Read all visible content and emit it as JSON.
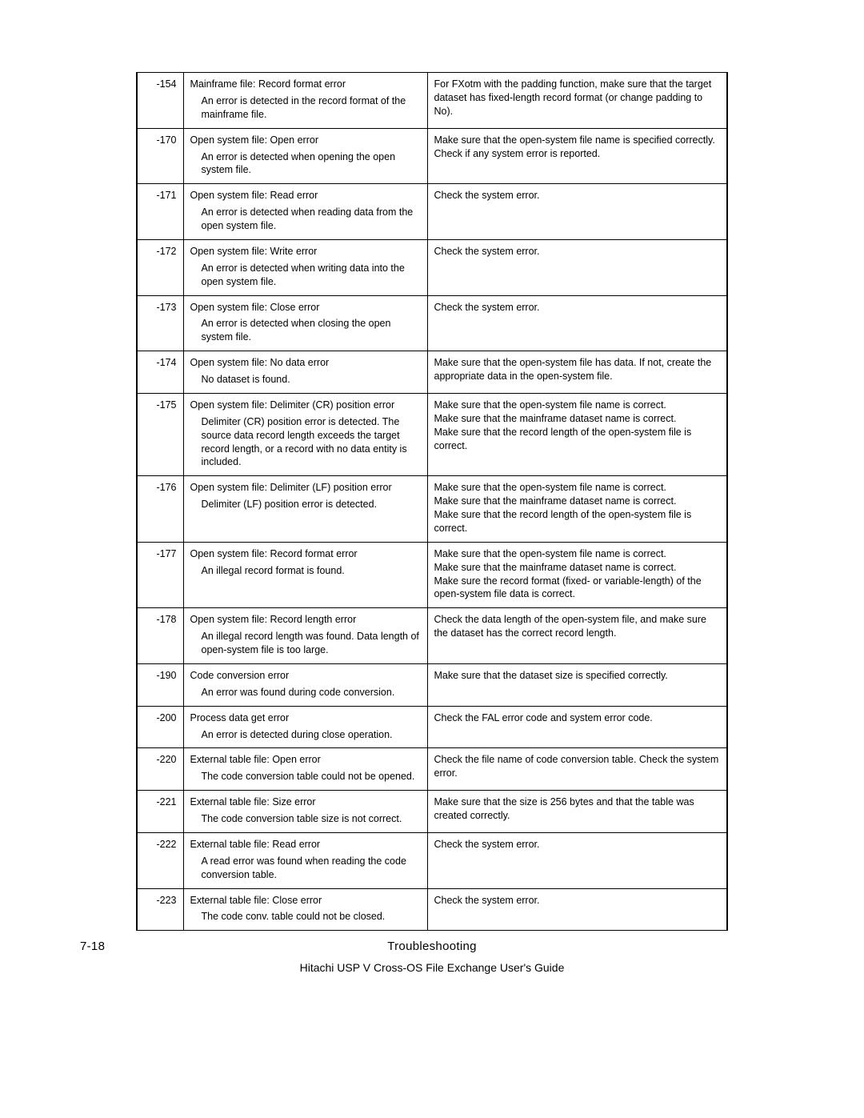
{
  "footer": {
    "page_number": "7-18",
    "section": "Troubleshooting",
    "guide": "Hitachi USP V Cross-OS File Exchange User's Guide"
  },
  "rows": [
    {
      "code": "-154",
      "title": "Mainframe file: Record format error",
      "detail": "An error is detected in the record format of the mainframe file.",
      "action": "For FXotm with the padding function, make sure that the target dataset has fixed-length record format (or change padding to No)."
    },
    {
      "code": "-170",
      "title": "Open system file: Open error",
      "detail": "An error is detected when opening the open system file.",
      "action": "Make sure that the open-system file name is specified correctly.\nCheck if any system error is reported."
    },
    {
      "code": "-171",
      "title": "Open system file: Read error",
      "detail": "An error is detected when reading data from the open system file.",
      "action": "Check the system error."
    },
    {
      "code": "-172",
      "title": "Open system file: Write error",
      "detail": "An error is detected when writing data into the open system file.",
      "action": "Check the system error."
    },
    {
      "code": "-173",
      "title": "Open system file: Close error",
      "detail": "An error is detected when closing the open system file.",
      "action": "Check the system error."
    },
    {
      "code": "-174",
      "title": "Open system file: No data error",
      "detail": "No dataset is found.",
      "action": "Make sure that the open-system file has data. If not, create the appropriate data in the open-system file."
    },
    {
      "code": "-175",
      "title": "Open system file: Delimiter (CR) position error",
      "detail": "Delimiter (CR) position error is detected. The source data record length exceeds the target record length, or a record with no data entity is included.",
      "action": "Make sure that the open-system file name is correct.\nMake sure that the mainframe dataset name is correct.\nMake sure that the record length of the open-system file is correct."
    },
    {
      "code": "-176",
      "title": "Open system file: Delimiter (LF) position error",
      "detail": "Delimiter (LF) position error is detected.",
      "action": "Make sure that the open-system file name is correct.\nMake sure that the mainframe dataset name is correct.\nMake sure that the record length of the open-system file is correct."
    },
    {
      "code": "-177",
      "title": "Open system file: Record format error",
      "detail": "An illegal record format is found.",
      "action": "Make sure that the open-system file name is correct.\nMake sure that the mainframe dataset name is correct.\nMake sure the record format (fixed- or variable-length) of the open-system file data is correct."
    },
    {
      "code": "-178",
      "title": "Open system file: Record length error",
      "detail": "An illegal record length was found. Data length of open-system file is too large.",
      "action": "Check the data length of the open-system file, and make sure the dataset has the correct record length."
    },
    {
      "code": "-190",
      "title": "Code conversion error",
      "detail": "An error was found during code conversion.",
      "action": "Make sure that the dataset size is specified correctly."
    },
    {
      "code": "-200",
      "title": "Process data get error",
      "detail": "An error is detected during close operation.",
      "action": "Check the FAL error code and system error code."
    },
    {
      "code": "-220",
      "title": "External table file: Open error",
      "detail": "The code conversion table could not be opened.",
      "action": "Check the file name of code conversion table. Check the system error."
    },
    {
      "code": "-221",
      "title": "External table file: Size error",
      "detail": "The code conversion table size is not correct.",
      "action": "Make sure that the size is 256 bytes and that the table was created correctly."
    },
    {
      "code": "-222",
      "title": "External table file: Read error",
      "detail": "A read error was found when reading the code conversion table.",
      "action": "Check the system error."
    },
    {
      "code": "-223",
      "title": "External table file: Close error",
      "detail": "The code conv. table could not be closed.",
      "action": "Check the system error."
    }
  ]
}
